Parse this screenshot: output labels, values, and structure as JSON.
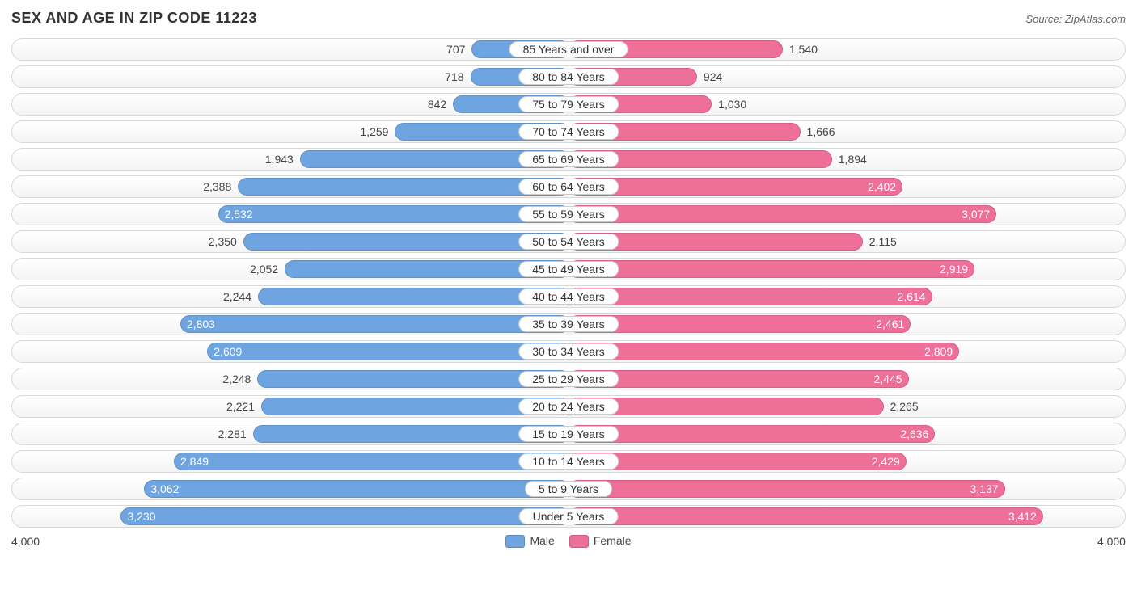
{
  "title": "SEX AND AGE IN ZIP CODE 11223",
  "source": "Source: ZipAtlas.com",
  "axis_max": 4000,
  "axis_label_left": "4,000",
  "axis_label_right": "4,000",
  "colors": {
    "male": "#6ea4e0",
    "female": "#ee6f98",
    "row_border": "#d8d8d8",
    "text_inside": "#ffffff",
    "text_outside": "#444444"
  },
  "legend": [
    {
      "label": "Male",
      "color": "#6ea4e0"
    },
    {
      "label": "Female",
      "color": "#ee6f98"
    }
  ],
  "inside_threshold": 2400,
  "rows": [
    {
      "category": "85 Years and over",
      "male": 707,
      "female": 1540,
      "male_label": "707",
      "female_label": "1,540"
    },
    {
      "category": "80 to 84 Years",
      "male": 718,
      "female": 924,
      "male_label": "718",
      "female_label": "924"
    },
    {
      "category": "75 to 79 Years",
      "male": 842,
      "female": 1030,
      "male_label": "842",
      "female_label": "1,030"
    },
    {
      "category": "70 to 74 Years",
      "male": 1259,
      "female": 1666,
      "male_label": "1,259",
      "female_label": "1,666"
    },
    {
      "category": "65 to 69 Years",
      "male": 1943,
      "female": 1894,
      "male_label": "1,943",
      "female_label": "1,894"
    },
    {
      "category": "60 to 64 Years",
      "male": 2388,
      "female": 2402,
      "male_label": "2,388",
      "female_label": "2,402"
    },
    {
      "category": "55 to 59 Years",
      "male": 2532,
      "female": 3077,
      "male_label": "2,532",
      "female_label": "3,077"
    },
    {
      "category": "50 to 54 Years",
      "male": 2350,
      "female": 2115,
      "male_label": "2,350",
      "female_label": "2,115"
    },
    {
      "category": "45 to 49 Years",
      "male": 2052,
      "female": 2919,
      "male_label": "2,052",
      "female_label": "2,919"
    },
    {
      "category": "40 to 44 Years",
      "male": 2244,
      "female": 2614,
      "male_label": "2,244",
      "female_label": "2,614"
    },
    {
      "category": "35 to 39 Years",
      "male": 2803,
      "female": 2461,
      "male_label": "2,803",
      "female_label": "2,461"
    },
    {
      "category": "30 to 34 Years",
      "male": 2609,
      "female": 2809,
      "male_label": "2,609",
      "female_label": "2,809"
    },
    {
      "category": "25 to 29 Years",
      "male": 2248,
      "female": 2445,
      "male_label": "2,248",
      "female_label": "2,445"
    },
    {
      "category": "20 to 24 Years",
      "male": 2221,
      "female": 2265,
      "male_label": "2,221",
      "female_label": "2,265"
    },
    {
      "category": "15 to 19 Years",
      "male": 2281,
      "female": 2636,
      "male_label": "2,281",
      "female_label": "2,636"
    },
    {
      "category": "10 to 14 Years",
      "male": 2849,
      "female": 2429,
      "male_label": "2,849",
      "female_label": "2,429"
    },
    {
      "category": "5 to 9 Years",
      "male": 3062,
      "female": 3137,
      "male_label": "3,062",
      "female_label": "3,137"
    },
    {
      "category": "Under 5 Years",
      "male": 3230,
      "female": 3412,
      "male_label": "3,230",
      "female_label": "3,412"
    }
  ]
}
